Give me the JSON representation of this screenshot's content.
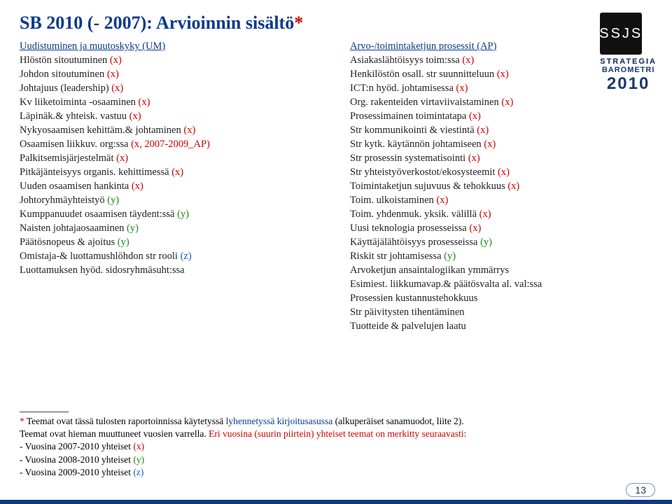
{
  "title_main": "SB 2010 (- 2007): Arvioinnin sisältö",
  "title_star": "*",
  "logo": {
    "square": "SSJS",
    "line1": "STRATEGIA",
    "line2": "BAROMETRI",
    "year": "2010"
  },
  "left": {
    "heading": "Uudistuminen ja muutoskyky (UM)",
    "items": [
      {
        "t": "Hlöstön sitoutuminen ",
        "m": "(x)",
        "c": "x"
      },
      {
        "t": "Johdon sitoutuminen ",
        "m": "(x)",
        "c": "x"
      },
      {
        "t": "Johtajuus (leadership) ",
        "m": "(x)",
        "c": "x"
      },
      {
        "t": "Kv liiketoiminta -osaaminen ",
        "m": "(x)",
        "c": "x"
      },
      {
        "t": "Läpinäk.& yhteisk. vastuu ",
        "m": "(x)",
        "c": "x"
      },
      {
        "t": "Nykyosaamisen kehittäm.& johtaminen ",
        "m": "(x)",
        "c": "x"
      },
      {
        "t": "Osaamisen liikkuv. org:ssa ",
        "m": "(x, 2007-2009_AP)",
        "c": "x"
      },
      {
        "t": "Palkitsemisjärjestelmät ",
        "m": "(x)",
        "c": "x"
      },
      {
        "t": "Pitkäjänteisyys organis. kehittimessä ",
        "m": "(x)",
        "c": "x"
      },
      {
        "t": "Uuden osaamisen hankinta ",
        "m": "(x)",
        "c": "x"
      },
      {
        "t": "Johtoryhmäyhteistyö ",
        "m": "(y)",
        "c": "y"
      },
      {
        "t": "Kumppanuudet osaamisen täydent:ssä ",
        "m": "(y)",
        "c": "y"
      },
      {
        "t": "Naisten johtajaosaaminen ",
        "m": "(y)",
        "c": "y"
      },
      {
        "t": "Päätösnopeus & ajoitus ",
        "m": "(y)",
        "c": "y"
      },
      {
        "t": "Omistaja-& luottamushlöhdon str rooli ",
        "m": "(z)",
        "c": "z"
      },
      {
        "t": "Luottamuksen hyöd. sidosryhmäsuht:ssa",
        "m": "",
        "c": ""
      }
    ]
  },
  "right": {
    "heading": "Arvo-/toimintaketjun prosessit (AP)",
    "items": [
      {
        "t": "Asiakaslähtöisyys toim:ssa ",
        "m": "(x)",
        "c": "x"
      },
      {
        "t": "Henkilöstön osall. str suunnitteluun ",
        "m": "(x)",
        "c": "x"
      },
      {
        "t": "ICT:n hyöd. johtamisessa ",
        "m": "(x)",
        "c": "x"
      },
      {
        "t": "Org. rakenteiden virtaviivaistaminen ",
        "m": "(x)",
        "c": "x"
      },
      {
        "t": "Prosessimainen toimintatapa ",
        "m": "(x)",
        "c": "x"
      },
      {
        "t": "Str kommunikointi & viestintä ",
        "m": "(x)",
        "c": "x"
      },
      {
        "t": "Str kytk. käytännön johtamiseen ",
        "m": "(x)",
        "c": "x"
      },
      {
        "t": "Str prosessin systematisointi ",
        "m": "(x)",
        "c": "x"
      },
      {
        "t": "Str yhteistyöverkostot/ekosysteemit ",
        "m": "(x)",
        "c": "x"
      },
      {
        "t": "Toimintaketjun sujuvuus & tehokkuus ",
        "m": "(x)",
        "c": "x"
      },
      {
        "t": "Toim. ulkoistaminen ",
        "m": "(x)",
        "c": "x"
      },
      {
        "t": "Toim. yhdenmuk. yksik. välillä ",
        "m": "(x)",
        "c": "x"
      },
      {
        "t": "Uusi teknologia prosesseissa ",
        "m": "(x)",
        "c": "x"
      },
      {
        "t": "Käyttäjälähtöisyys prosesseissa ",
        "m": "(y)",
        "c": "y"
      },
      {
        "t": "Riskit str johtamisessa ",
        "m": "(y)",
        "c": "y"
      },
      {
        "t": "Arvoketjun ansaintalogiikan ymmärrys",
        "m": "",
        "c": ""
      },
      {
        "t": "Esimiest. liikkumavap.& päätösvalta al. val:ssa",
        "m": "",
        "c": ""
      },
      {
        "t": "Prosessien kustannustehokkuus",
        "m": "",
        "c": ""
      },
      {
        "t": "Str päivitysten tihentäminen",
        "m": "",
        "c": ""
      },
      {
        "t": "Tuotteide & palvelujen laatu",
        "m": "",
        "c": ""
      }
    ]
  },
  "footnote": {
    "star": "*",
    "line1a": " Teemat ovat tässä tulosten raportoinnissa käytetyssä ",
    "line1b": "lyhennetyssä kirjoitusasussa",
    "line1c": " (alkuperäiset sanamuodot, liite 2).",
    "line2a": "Teemat ovat hieman muuttuneet vuosien varrella. ",
    "line2b": "Eri vuosina (suurin piirtein) yhteiset teemat on merkitty seuraavasti:",
    "bul1": " - Vuosina 2007-2010 yhteiset ",
    "bul1m": "(x)",
    "bul2": " - Vuosina 2008-2010 yhteiset ",
    "bul2m": "(y)",
    "bul3": " - Vuosina 2009-2010 yhteiset ",
    "bul3m": "(z)"
  },
  "pagenum": "13"
}
